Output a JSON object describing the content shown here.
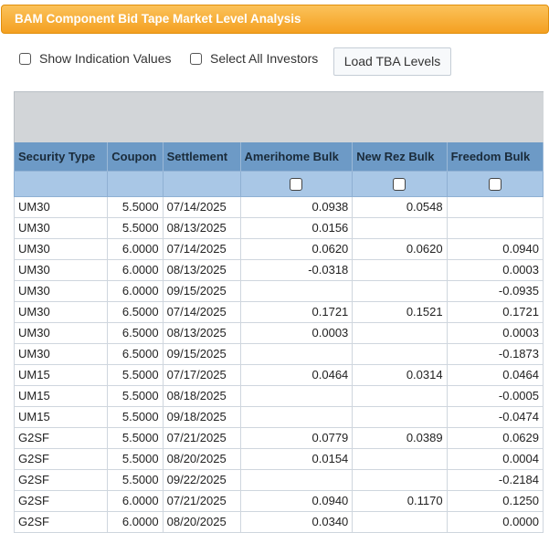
{
  "window": {
    "title": "BAM Component Bid Tape Market Level Analysis"
  },
  "toolbar": {
    "show_indication_label": "Show Indication Values",
    "select_all_label": "Select All Investors",
    "load_button_label": "Load TBA Levels"
  },
  "grid": {
    "columns": [
      "Security Type",
      "Coupon",
      "Settlement",
      "Amerihome Bulk",
      "New Rez Bulk",
      "Freedom Bulk"
    ],
    "rows": [
      [
        "UM30",
        "5.5000",
        "07/14/2025",
        "0.0938",
        "0.0548",
        ""
      ],
      [
        "UM30",
        "5.5000",
        "08/13/2025",
        "0.0156",
        "",
        ""
      ],
      [
        "UM30",
        "6.0000",
        "07/14/2025",
        "0.0620",
        "0.0620",
        "0.0940"
      ],
      [
        "UM30",
        "6.0000",
        "08/13/2025",
        "-0.0318",
        "",
        "0.0003"
      ],
      [
        "UM30",
        "6.0000",
        "09/15/2025",
        "",
        "",
        "-0.0935"
      ],
      [
        "UM30",
        "6.5000",
        "07/14/2025",
        "0.1721",
        "0.1521",
        "0.1721"
      ],
      [
        "UM30",
        "6.5000",
        "08/13/2025",
        "0.0003",
        "",
        "0.0003"
      ],
      [
        "UM30",
        "6.5000",
        "09/15/2025",
        "",
        "",
        "-0.1873"
      ],
      [
        "UM15",
        "5.5000",
        "07/17/2025",
        "0.0464",
        "0.0314",
        "0.0464"
      ],
      [
        "UM15",
        "5.5000",
        "08/18/2025",
        "",
        "",
        "-0.0005"
      ],
      [
        "UM15",
        "5.5000",
        "09/18/2025",
        "",
        "",
        "-0.0474"
      ],
      [
        "G2SF",
        "5.5000",
        "07/21/2025",
        "0.0779",
        "0.0389",
        "0.0629"
      ],
      [
        "G2SF",
        "5.5000",
        "08/20/2025",
        "0.0154",
        "",
        "0.0004"
      ],
      [
        "G2SF",
        "5.5000",
        "09/22/2025",
        "",
        "",
        "-0.2184"
      ],
      [
        "G2SF",
        "6.0000",
        "07/21/2025",
        "0.0940",
        "0.1170",
        "0.1250"
      ],
      [
        "G2SF",
        "6.0000",
        "08/20/2025",
        "0.0340",
        "",
        "0.0000"
      ]
    ]
  }
}
